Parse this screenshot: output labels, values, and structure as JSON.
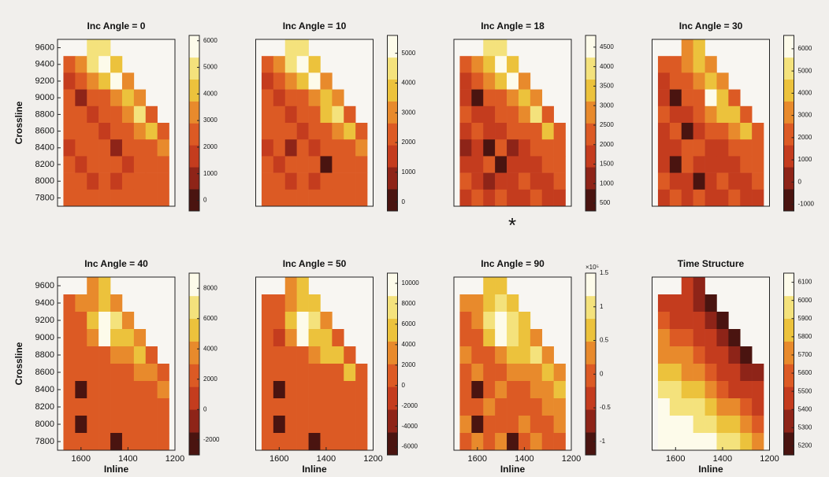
{
  "colormap": [
    "#4a1410",
    "#8e2418",
    "#c43c1e",
    "#dc5a24",
    "#e88a2c",
    "#ecc23c",
    "#f4e27c",
    "#fdfbea"
  ],
  "annotation": "*",
  "chart_data": [
    {
      "type": "heatmap",
      "title": "Inc Angle = 0",
      "ylabel": "Crossline",
      "x": [
        1650,
        1600,
        1550,
        1500,
        1450,
        1400,
        1350,
        1300,
        1250
      ],
      "y": [
        9600,
        9400,
        9200,
        9000,
        8800,
        8600,
        8400,
        8200,
        8000,
        7800
      ],
      "xlim": [
        1700,
        1200
      ],
      "ylim": [
        7700,
        9700
      ],
      "yticks": [
        7800,
        8000,
        8200,
        8400,
        8600,
        8800,
        9000,
        9200,
        9400,
        9600
      ],
      "clim": [
        -400,
        6200
      ],
      "cticks": [
        0,
        1000,
        2000,
        3000,
        4000,
        5000,
        6000
      ],
      "z": [
        [
          null,
          null,
          4800,
          5200,
          null,
          null,
          null,
          null,
          null
        ],
        [
          2400,
          3000,
          4600,
          5400,
          4200,
          null,
          null,
          null,
          null
        ],
        [
          2000,
          2600,
          3000,
          4000,
          5600,
          3200,
          null,
          null,
          null
        ],
        [
          2200,
          600,
          2800,
          2600,
          3400,
          4400,
          3000,
          null,
          null
        ],
        [
          2600,
          2200,
          2000,
          2800,
          2600,
          3600,
          4800,
          2400,
          null
        ],
        [
          2200,
          2600,
          2400,
          2000,
          2800,
          2600,
          3000,
          4000,
          2600
        ],
        [
          1800,
          2400,
          2200,
          2600,
          500,
          2400,
          2800,
          2600,
          3000
        ],
        [
          2400,
          2000,
          2600,
          2200,
          2400,
          2000,
          2400,
          2800,
          2600
        ],
        [
          2600,
          2200,
          1600,
          2400,
          2000,
          2600,
          2200,
          2400,
          2800
        ],
        [
          2200,
          2600,
          2400,
          2800,
          2400,
          2200,
          2600,
          2400,
          2200
        ]
      ]
    },
    {
      "type": "heatmap",
      "title": "Inc Angle = 10",
      "x": [
        1650,
        1600,
        1550,
        1500,
        1450,
        1400,
        1350,
        1300,
        1250
      ],
      "y": [
        9600,
        9400,
        9200,
        9000,
        8800,
        8600,
        8400,
        8200,
        8000,
        7800
      ],
      "xlim": [
        1700,
        1200
      ],
      "ylim": [
        7700,
        9700
      ],
      "clim": [
        -300,
        5600
      ],
      "cticks": [
        0,
        1000,
        2000,
        3000,
        4000,
        5000
      ],
      "z": [
        [
          null,
          null,
          4400,
          4800,
          null,
          null,
          null,
          null,
          null
        ],
        [
          2200,
          2800,
          4200,
          5000,
          3800,
          null,
          null,
          null,
          null
        ],
        [
          1800,
          2400,
          2800,
          3600,
          5200,
          3000,
          null,
          null,
          null
        ],
        [
          2000,
          1600,
          2600,
          2400,
          3200,
          4000,
          2800,
          null,
          null
        ],
        [
          2400,
          2000,
          1800,
          2600,
          2400,
          3400,
          4400,
          2200,
          null
        ],
        [
          2000,
          2400,
          2200,
          1800,
          2600,
          2400,
          2800,
          3600,
          2400
        ],
        [
          1600,
          2200,
          600,
          2400,
          1200,
          2200,
          2600,
          2400,
          2800
        ],
        [
          2200,
          1800,
          2400,
          2000,
          2200,
          400,
          2200,
          2600,
          2400
        ],
        [
          2400,
          2000,
          1400,
          2200,
          1800,
          2400,
          2000,
          2200,
          2600
        ],
        [
          2000,
          2400,
          2200,
          2600,
          2200,
          2000,
          2400,
          2200,
          2000
        ]
      ]
    },
    {
      "type": "heatmap",
      "title": "Inc Angle = 18",
      "x": [
        1650,
        1600,
        1550,
        1500,
        1450,
        1400,
        1350,
        1300,
        1250
      ],
      "y": [
        9600,
        9400,
        9200,
        9000,
        8800,
        8600,
        8400,
        8200,
        8000,
        7800
      ],
      "xlim": [
        1700,
        1200
      ],
      "ylim": [
        7700,
        9700
      ],
      "clim": [
        300,
        4800
      ],
      "cticks": [
        500,
        1000,
        1500,
        2000,
        2500,
        3000,
        3500,
        4000,
        4500
      ],
      "z": [
        [
          null,
          null,
          3800,
          4200,
          null,
          null,
          null,
          null,
          null
        ],
        [
          2000,
          2600,
          3600,
          4400,
          3400,
          null,
          null,
          null,
          null
        ],
        [
          1600,
          2000,
          2600,
          3200,
          4300,
          2600,
          null,
          null,
          null
        ],
        [
          1800,
          800,
          2200,
          2000,
          2800,
          3600,
          2600,
          null,
          null
        ],
        [
          2200,
          1800,
          1600,
          2200,
          2000,
          3000,
          4200,
          2000,
          null
        ],
        [
          1800,
          2000,
          1800,
          1600,
          2200,
          2000,
          2400,
          3400,
          2200
        ],
        [
          1400,
          1800,
          700,
          2000,
          1000,
          1800,
          2200,
          2000,
          2400
        ],
        [
          1800,
          1600,
          2000,
          600,
          1800,
          1600,
          1800,
          2200,
          2000
        ],
        [
          2000,
          1600,
          1200,
          1800,
          1600,
          2000,
          1800,
          1800,
          2200
        ],
        [
          1600,
          2000,
          1800,
          2200,
          1800,
          1600,
          2000,
          1800,
          1600
        ]
      ]
    },
    {
      "type": "heatmap",
      "title": "Inc Angle = 30",
      "x": [
        1650,
        1600,
        1550,
        1500,
        1450,
        1400,
        1350,
        1300,
        1250
      ],
      "y": [
        9600,
        9400,
        9200,
        9000,
        8800,
        8600,
        8400,
        8200,
        8000,
        7800
      ],
      "xlim": [
        1700,
        1200
      ],
      "ylim": [
        7700,
        9700
      ],
      "clim": [
        -1300,
        6600
      ],
      "cticks": [
        -1000,
        0,
        1000,
        2000,
        3000,
        4000,
        5000,
        6000
      ],
      "z": [
        [
          null,
          null,
          3400,
          3800,
          null,
          null,
          null,
          null,
          null
        ],
        [
          1800,
          2200,
          3200,
          4200,
          3600,
          null,
          null,
          null,
          null
        ],
        [
          1400,
          1800,
          2600,
          3400,
          4600,
          2800,
          null,
          null,
          null
        ],
        [
          1600,
          -800,
          2000,
          2600,
          6000,
          4200,
          2600,
          null,
          null
        ],
        [
          2000,
          1600,
          1400,
          2000,
          3400,
          4400,
          3800,
          1800,
          null
        ],
        [
          1600,
          1800,
          -600,
          1400,
          2000,
          2600,
          3000,
          3800,
          2000
        ],
        [
          1200,
          1600,
          1800,
          1800,
          1200,
          1600,
          2000,
          2400,
          2200
        ],
        [
          1600,
          -900,
          1800,
          1600,
          1600,
          1400,
          1600,
          2000,
          1800
        ],
        [
          1800,
          1400,
          1000,
          -700,
          1400,
          1800,
          1600,
          1600,
          2000
        ],
        [
          1400,
          1800,
          1600,
          2000,
          1600,
          1400,
          1800,
          1600,
          1400
        ]
      ]
    },
    {
      "type": "heatmap",
      "title": "Inc Angle = 40",
      "ylabel": "Crossline",
      "xlabel": "Inline",
      "x": [
        1650,
        1600,
        1550,
        1500,
        1450,
        1400,
        1350,
        1300,
        1250
      ],
      "y": [
        9600,
        9400,
        9200,
        9000,
        8800,
        8600,
        8400,
        8200,
        8000,
        7800
      ],
      "xlim": [
        1700,
        1200
      ],
      "ylim": [
        7700,
        9700
      ],
      "xticks": [
        1600,
        1400,
        1200
      ],
      "yticks": [
        7800,
        8000,
        8200,
        8400,
        8600,
        8800,
        9000,
        9200,
        9400,
        9600
      ],
      "clim": [
        -3000,
        9000
      ],
      "cticks": [
        -2000,
        0,
        2000,
        4000,
        6000,
        8000
      ],
      "z": [
        [
          null,
          null,
          4200,
          4600,
          null,
          null,
          null,
          null,
          null
        ],
        [
          2400,
          3000,
          4000,
          5200,
          4400,
          null,
          null,
          null,
          null
        ],
        [
          2000,
          2600,
          5200,
          7600,
          6400,
          3600,
          null,
          null,
          null
        ],
        [
          2200,
          1800,
          4000,
          8600,
          5800,
          4800,
          3000,
          null,
          null
        ],
        [
          2600,
          2200,
          2000,
          2600,
          3400,
          4400,
          4800,
          2400,
          null
        ],
        [
          2200,
          2400,
          2000,
          1800,
          2400,
          2800,
          3200,
          4400,
          2600
        ],
        [
          1800,
          -2200,
          2200,
          2400,
          1600,
          2200,
          2600,
          2800,
          3000
        ],
        [
          2200,
          2000,
          2400,
          2200,
          2000,
          1800,
          2200,
          2600,
          2400
        ],
        [
          2400,
          -2400,
          1800,
          2200,
          2000,
          2400,
          2000,
          2200,
          2600
        ],
        [
          2000,
          2400,
          2200,
          2600,
          -2000,
          2000,
          2400,
          2200,
          2000
        ]
      ]
    },
    {
      "type": "heatmap",
      "title": "Inc Angle = 50",
      "xlabel": "Inline",
      "x": [
        1650,
        1600,
        1550,
        1500,
        1450,
        1400,
        1350,
        1300,
        1250
      ],
      "y": [
        9600,
        9400,
        9200,
        9000,
        8800,
        8600,
        8400,
        8200,
        8000,
        7800
      ],
      "xlim": [
        1700,
        1200
      ],
      "ylim": [
        7700,
        9700
      ],
      "xticks": [
        1600,
        1400,
        1200
      ],
      "clim": [
        -6800,
        11000
      ],
      "cticks": [
        -6000,
        -4000,
        -2000,
        0,
        2000,
        4000,
        6000,
        8000,
        10000
      ],
      "z": [
        [
          null,
          null,
          4000,
          4800,
          null,
          null,
          null,
          null,
          null
        ],
        [
          800,
          1600,
          3600,
          5600,
          4800,
          null,
          null,
          null,
          null
        ],
        [
          200,
          1200,
          5600,
          9000,
          7600,
          2800,
          null,
          null,
          null
        ],
        [
          600,
          -200,
          3600,
          10000,
          6400,
          4800,
          2000,
          null,
          null
        ],
        [
          1000,
          600,
          200,
          1200,
          2400,
          4400,
          5200,
          800,
          null
        ],
        [
          600,
          800,
          400,
          200,
          1000,
          1600,
          2000,
          4400,
          1200
        ],
        [
          200,
          -5000,
          600,
          800,
          0,
          600,
          1200,
          1600,
          2000
        ],
        [
          600,
          400,
          800,
          600,
          400,
          200,
          600,
          1200,
          800
        ],
        [
          800,
          -5600,
          200,
          600,
          400,
          800,
          400,
          600,
          1200
        ],
        [
          400,
          800,
          600,
          1200,
          -4800,
          400,
          800,
          600,
          400
        ]
      ]
    },
    {
      "type": "heatmap",
      "title": "Inc Angle = 90",
      "xlabel": "Inline",
      "clabel": "×10⁵",
      "x": [
        1650,
        1600,
        1550,
        1500,
        1450,
        1400,
        1350,
        1300,
        1250
      ],
      "y": [
        9600,
        9400,
        9200,
        9000,
        8800,
        8600,
        8400,
        8200,
        8000,
        7800
      ],
      "xlim": [
        1700,
        1200
      ],
      "ylim": [
        7700,
        9700
      ],
      "xticks": [
        1600,
        1400,
        1200
      ],
      "clim": [
        -1.2,
        1.5
      ],
      "cticks": [
        -1,
        -0.5,
        0,
        0.5,
        1,
        1.5
      ],
      "z": [
        [
          null,
          null,
          0.7,
          0.8,
          null,
          null,
          null,
          null,
          null
        ],
        [
          0.2,
          0.4,
          0.6,
          0.9,
          0.8,
          null,
          null,
          null,
          null
        ],
        [
          0.1,
          0.3,
          0.9,
          1.3,
          1.1,
          0.5,
          null,
          null,
          null
        ],
        [
          0.1,
          -0.1,
          0.6,
          1.4,
          1,
          0.8,
          0.4,
          null,
          null
        ],
        [
          0.2,
          0.1,
          0.1,
          0.3,
          0.5,
          0.8,
          0.9,
          0.2,
          null
        ],
        [
          0.1,
          0.2,
          0.1,
          0,
          0.2,
          0.3,
          0.4,
          0.8,
          0.3
        ],
        [
          0,
          -0.9,
          0.1,
          0.2,
          0,
          0.1,
          0.3,
          0.4,
          0.5
        ],
        [
          0.1,
          0.1,
          0.2,
          0.1,
          0.1,
          0,
          0.1,
          0.3,
          0.2
        ],
        [
          0.2,
          -1,
          0,
          0.1,
          0.1,
          0.2,
          0.1,
          0.1,
          0.3
        ],
        [
          0.1,
          0.2,
          0.1,
          0.3,
          -0.9,
          0.1,
          0.2,
          0.1,
          0.1
        ]
      ]
    },
    {
      "type": "heatmap",
      "title": "Time Structure",
      "xlabel": "Inline",
      "x": [
        1650,
        1600,
        1550,
        1500,
        1450,
        1400,
        1350,
        1300,
        1250
      ],
      "y": [
        9600,
        9400,
        9200,
        9000,
        8800,
        8600,
        8400,
        8200,
        8000,
        7800
      ],
      "xlim": [
        1700,
        1200
      ],
      "ylim": [
        7700,
        9700
      ],
      "xticks": [
        1600,
        1400,
        1200
      ],
      "clim": [
        5150,
        6150
      ],
      "cticks": [
        5200,
        5300,
        5400,
        5500,
        5600,
        5700,
        5800,
        5900,
        6000,
        6100
      ],
      "z": [
        [
          null,
          null,
          5400,
          5350,
          null,
          null,
          null,
          null,
          null
        ],
        [
          5500,
          5450,
          5400,
          5350,
          5250,
          null,
          null,
          null,
          null
        ],
        [
          5550,
          5500,
          5450,
          5400,
          5350,
          5250,
          null,
          null,
          null
        ],
        [
          5650,
          5600,
          5550,
          5450,
          5400,
          5300,
          5250,
          null,
          null
        ],
        [
          5750,
          5700,
          5650,
          5550,
          5500,
          5400,
          5300,
          5250,
          null
        ],
        [
          5850,
          5800,
          5750,
          5700,
          5600,
          5500,
          5400,
          5350,
          5300
        ],
        [
          5950,
          5900,
          5850,
          5800,
          5700,
          5600,
          5500,
          5450,
          5400
        ],
        [
          6050,
          6000,
          5950,
          5900,
          5850,
          5750,
          5650,
          5550,
          5450
        ],
        [
          6100,
          6100,
          6050,
          6000,
          5950,
          5850,
          5800,
          5700,
          5600
        ],
        [
          6100,
          6100,
          6100,
          6100,
          6050,
          6000,
          5950,
          5850,
          5750
        ]
      ]
    }
  ]
}
